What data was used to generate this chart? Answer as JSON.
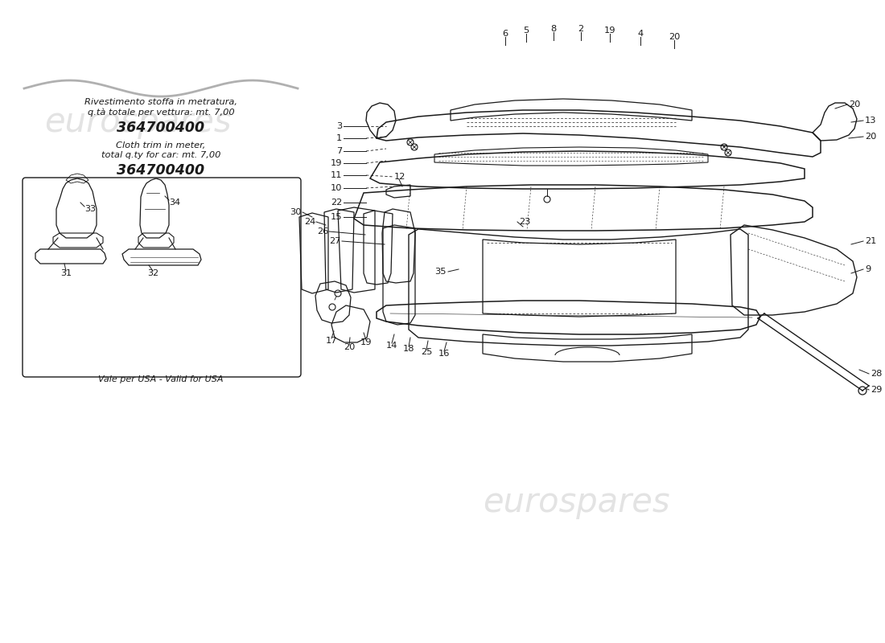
{
  "background_color": "#ffffff",
  "line_color": "#1a1a1a",
  "watermark_color": "#cccccc",
  "text_color": "#1a1a1a",
  "italian_text_line1": "Rivestimento stoffa in metratura,",
  "italian_text_line2": "q.tà totale per vettura: mt. 7,00",
  "italian_part_number": "364700400",
  "english_text_line1": "Cloth trim in meter,",
  "english_text_line2": "total q.ty for car: mt. 7,00",
  "english_part_number": "364700400",
  "usa_note": "Vale per USA - Valid for USA",
  "figsize": [
    11.0,
    8.0
  ],
  "dpi": 100
}
